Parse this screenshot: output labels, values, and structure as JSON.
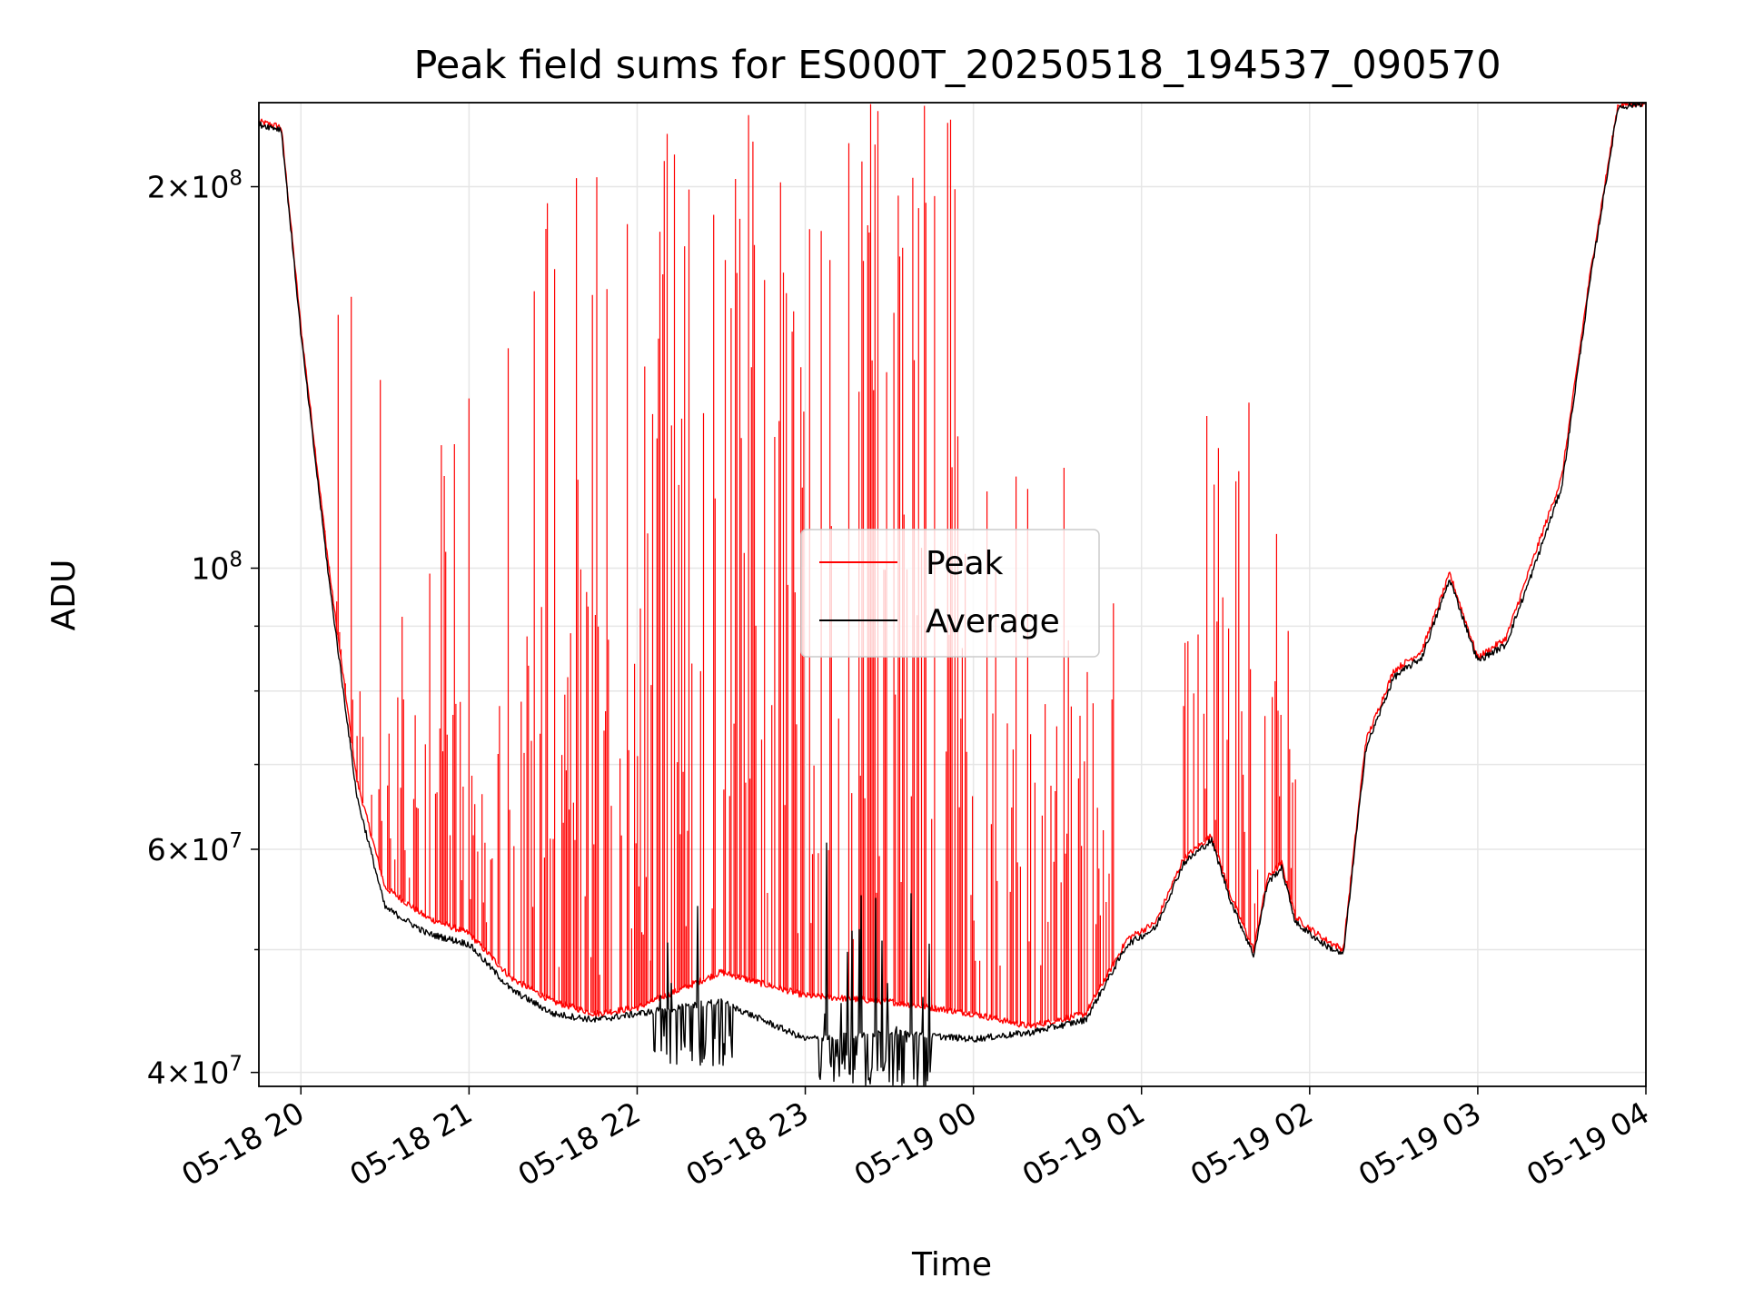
{
  "chart_data": {
    "type": "line",
    "title": "Peak field sums for ES000T_20250518_194537_090570",
    "xlabel": "Time",
    "ylabel": "ADU",
    "yscale": "log",
    "grid": true,
    "legend_position": "center",
    "xlim": [
      "2025-05-18 19:45",
      "2025-05-19 04:00"
    ],
    "ylim": [
      39000000,
      233000000
    ],
    "x_ticks": [
      {
        "value": "2025-05-18 20:00",
        "label": "05-18 20"
      },
      {
        "value": "2025-05-18 21:00",
        "label": "05-18 21"
      },
      {
        "value": "2025-05-18 22:00",
        "label": "05-18 22"
      },
      {
        "value": "2025-05-18 23:00",
        "label": "05-18 23"
      },
      {
        "value": "2025-05-19 00:00",
        "label": "05-19 00"
      },
      {
        "value": "2025-05-19 01:00",
        "label": "05-19 01"
      },
      {
        "value": "2025-05-19 02:00",
        "label": "05-19 02"
      },
      {
        "value": "2025-05-19 03:00",
        "label": "05-19 03"
      },
      {
        "value": "2025-05-19 04:00",
        "label": "05-19 04"
      }
    ],
    "y_ticks": [
      {
        "value": 40000000,
        "base": "4",
        "exp": "7"
      },
      {
        "value": 60000000,
        "base": "6",
        "exp": "7"
      },
      {
        "value": 100000000,
        "base": "",
        "exp": "8"
      },
      {
        "value": 200000000,
        "base": "2",
        "exp": "8"
      }
    ],
    "y_minor_ticks": [
      50000000,
      70000000,
      80000000,
      90000000
    ],
    "series": [
      {
        "name": "Peak",
        "color": "#ff0000",
        "points": [
          [
            "2025-05-18 19:45",
            225000000
          ],
          [
            "2025-05-18 19:53",
            223000000
          ],
          [
            "2025-05-18 20:00",
            155000000
          ],
          [
            "2025-05-18 20:10",
            100000000
          ],
          [
            "2025-05-18 20:20",
            68000000
          ],
          [
            "2025-05-18 20:30",
            56000000
          ],
          [
            "2025-05-18 20:45",
            53000000
          ],
          [
            "2025-05-18 21:00",
            51500000
          ],
          [
            "2025-05-18 21:15",
            47500000
          ],
          [
            "2025-05-18 21:30",
            45500000
          ],
          [
            "2025-05-18 21:45",
            44500000
          ],
          [
            "2025-05-18 22:00",
            45000000
          ],
          [
            "2025-05-18 22:30",
            48000000
          ],
          [
            "2025-05-18 23:00",
            46000000
          ],
          [
            "2025-05-18 23:30",
            45500000
          ],
          [
            "2025-05-19 00:00",
            44500000
          ],
          [
            "2025-05-19 00:20",
            43500000
          ],
          [
            "2025-05-19 00:40",
            44500000
          ],
          [
            "2025-05-19 00:55",
            51000000
          ],
          [
            "2025-05-19 01:05",
            52500000
          ],
          [
            "2025-05-19 01:15",
            59000000
          ],
          [
            "2025-05-19 01:25",
            61500000
          ],
          [
            "2025-05-19 01:32",
            55000000
          ],
          [
            "2025-05-19 01:40",
            50000000
          ],
          [
            "2025-05-19 01:45",
            57000000
          ],
          [
            "2025-05-19 01:50",
            58500000
          ],
          [
            "2025-05-19 01:55",
            53000000
          ],
          [
            "2025-05-19 02:05",
            51000000
          ],
          [
            "2025-05-19 02:12",
            50000000
          ],
          [
            "2025-05-19 02:20",
            73000000
          ],
          [
            "2025-05-19 02:30",
            83000000
          ],
          [
            "2025-05-19 02:40",
            86000000
          ],
          [
            "2025-05-19 02:50",
            99000000
          ],
          [
            "2025-05-19 03:00",
            85000000
          ],
          [
            "2025-05-19 03:10",
            88000000
          ],
          [
            "2025-05-19 03:20",
            102000000
          ],
          [
            "2025-05-19 03:30",
            118000000
          ],
          [
            "2025-05-19 03:40",
            170000000
          ],
          [
            "2025-05-19 03:50",
            232000000
          ],
          [
            "2025-05-19 04:00",
            233000000
          ]
        ],
        "spike_bursts": [
          {
            "from": "2025-05-18 20:05",
            "to": "2025-05-18 21:15",
            "typical_peak": 80000000,
            "max_peak": 165000000
          },
          {
            "from": "2025-05-18 21:15",
            "to": "2025-05-18 22:05",
            "typical_peak": 100000000,
            "max_peak": 205000000
          },
          {
            "from": "2025-05-18 22:05",
            "to": "2025-05-18 23:55",
            "typical_peak": 180000000,
            "max_peak": 233000000
          },
          {
            "from": "2025-05-18 23:55",
            "to": "2025-05-19 00:50",
            "typical_peak": 80000000,
            "max_peak": 125000000
          },
          {
            "from": "2025-05-19 01:15",
            "to": "2025-05-19 01:55",
            "typical_peak": 90000000,
            "max_peak": 147000000
          }
        ]
      },
      {
        "name": "Average",
        "color": "#000000",
        "points": [
          [
            "2025-05-18 19:45",
            224000000
          ],
          [
            "2025-05-18 19:53",
            222000000
          ],
          [
            "2025-05-18 20:00",
            153000000
          ],
          [
            "2025-05-18 20:10",
            98000000
          ],
          [
            "2025-05-18 20:20",
            66000000
          ],
          [
            "2025-05-18 20:30",
            54000000
          ],
          [
            "2025-05-18 20:45",
            51500000
          ],
          [
            "2025-05-18 21:00",
            50500000
          ],
          [
            "2025-05-18 21:15",
            46500000
          ],
          [
            "2025-05-18 21:30",
            44500000
          ],
          [
            "2025-05-18 21:45",
            44000000
          ],
          [
            "2025-05-18 22:00",
            44500000
          ],
          [
            "2025-05-18 22:30",
            45500000
          ],
          [
            "2025-05-18 23:00",
            42500000
          ],
          [
            "2025-05-18 23:30",
            43000000
          ],
          [
            "2025-05-19 00:00",
            42500000
          ],
          [
            "2025-05-19 00:20",
            43000000
          ],
          [
            "2025-05-19 00:40",
            44000000
          ],
          [
            "2025-05-19 00:55",
            50500000
          ],
          [
            "2025-05-19 01:05",
            52000000
          ],
          [
            "2025-05-19 01:15",
            58500000
          ],
          [
            "2025-05-19 01:25",
            61000000
          ],
          [
            "2025-05-19 01:32",
            54500000
          ],
          [
            "2025-05-19 01:40",
            49500000
          ],
          [
            "2025-05-19 01:45",
            56500000
          ],
          [
            "2025-05-19 01:50",
            58000000
          ],
          [
            "2025-05-19 01:55",
            52500000
          ],
          [
            "2025-05-19 02:05",
            50500000
          ],
          [
            "2025-05-19 02:12",
            49500000
          ],
          [
            "2025-05-19 02:20",
            72000000
          ],
          [
            "2025-05-19 02:30",
            82000000
          ],
          [
            "2025-05-19 02:40",
            85000000
          ],
          [
            "2025-05-19 02:50",
            98000000
          ],
          [
            "2025-05-19 03:00",
            84500000
          ],
          [
            "2025-05-19 03:10",
            87000000
          ],
          [
            "2025-05-19 03:20",
            100000000
          ],
          [
            "2025-05-19 03:30",
            116000000
          ],
          [
            "2025-05-19 03:40",
            168000000
          ],
          [
            "2025-05-19 03:50",
            231000000
          ],
          [
            "2025-05-19 04:00",
            233000000
          ]
        ],
        "noise_bursts": [
          {
            "from": "2025-05-18 22:05",
            "to": "2025-05-18 22:35",
            "min": 40500000,
            "max": 55000000
          },
          {
            "from": "2025-05-18 23:05",
            "to": "2025-05-18 23:45",
            "min": 39000000,
            "max": 68000000
          }
        ]
      }
    ]
  }
}
